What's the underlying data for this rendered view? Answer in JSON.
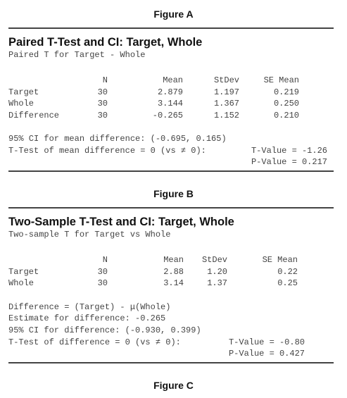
{
  "figures": [
    {
      "label": "Figure A",
      "title": "Paired T-Test and CI: Target, Whole",
      "subtitle": "Paired T for Target - Whole",
      "table": {
        "header": [
          "N",
          "Mean",
          "StDev",
          "SE Mean"
        ],
        "rows": [
          [
            "Target",
            "30",
            "2.879",
            "1.197",
            "0.219"
          ],
          [
            "Whole",
            "30",
            "3.144",
            "1.367",
            "0.250"
          ],
          [
            "Difference",
            "30",
            "-0.265",
            "1.152",
            "0.210"
          ]
        ]
      },
      "notes": [
        "95% CI for mean difference: (-0.695, 0.165)"
      ],
      "test": {
        "label": "T-Test of mean difference = 0 (vs ≠ 0):",
        "t_value": "T-Value = -1.26",
        "p_value": "P-Value = 0.217"
      }
    },
    {
      "label": "Figure B",
      "title": "Two-Sample T-Test and CI: Target, Whole",
      "subtitle": "Two-sample T for Target vs Whole",
      "table": {
        "header": [
          "N",
          "Mean",
          "StDev",
          "SE Mean"
        ],
        "rows": [
          [
            "Target",
            "30",
            "2.88",
            "1.20",
            "0.22"
          ],
          [
            "Whole",
            "30",
            "3.14",
            "1.37",
            "0.25"
          ]
        ]
      },
      "notes": [
        "Difference = (Target) - μ(Whole)",
        "Estimate for difference: -0.265",
        "95% CI for difference: (-0.930, 0.399)"
      ],
      "test": {
        "label": "T-Test of difference = 0 (vs ≠ 0):",
        "t_value": "T-Value = -0.80",
        "p_value": "P-Value = 0.427"
      }
    }
  ],
  "footer_label": "Figure C"
}
